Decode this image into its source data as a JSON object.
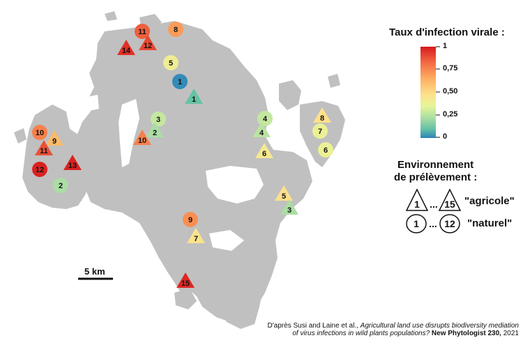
{
  "legend": {
    "title": "Taux d'infection virale :",
    "ticks": [
      "1",
      "0,75",
      "0,50",
      "0,25",
      "0"
    ],
    "colors": [
      "#d7191c",
      "#f46d43",
      "#fdae61",
      "#fee08b",
      "#e6f598",
      "#abdda4",
      "#66c2a5",
      "#2b83ba"
    ]
  },
  "environment": {
    "title_line1": "Environnement",
    "title_line2": "de prélèvement :",
    "agri_first": "1",
    "agri_last": "15",
    "ellipsis": "...",
    "agri_label": "\"agricole\"",
    "nat_first": "1",
    "nat_last": "12",
    "nat_label": "\"naturel\""
  },
  "scale_bar": {
    "label": "5 km"
  },
  "credit": {
    "prefix": "D'après Susi and Laine et al., ",
    "title_line1": "Agricultural land use disrupts biodiversity mediation",
    "title_line2": "of virus infections in wild plants populations?",
    "journal": "New Phytologist",
    "volume": "230,",
    "year": "2021"
  },
  "sites": [
    {
      "id": "nat-11",
      "shape": "circle",
      "label": "11",
      "rate": 0.85
    },
    {
      "id": "nat-8",
      "shape": "circle",
      "label": "8",
      "rate": 0.72
    },
    {
      "id": "agri-14",
      "shape": "triangle",
      "label": "14",
      "rate": 0.95
    },
    {
      "id": "agri-12",
      "shape": "triangle",
      "label": "12",
      "rate": 0.9
    },
    {
      "id": "nat-5",
      "shape": "circle",
      "label": "5",
      "rate": 0.47
    },
    {
      "id": "nat-1",
      "shape": "circle",
      "label": "1",
      "rate": 0.02
    },
    {
      "id": "agri-1",
      "shape": "triangle",
      "label": "1",
      "rate": 0.15
    },
    {
      "id": "nat-3",
      "shape": "circle",
      "label": "3",
      "rate": 0.35
    },
    {
      "id": "agri-2",
      "shape": "triangle",
      "label": "2",
      "rate": 0.3
    },
    {
      "id": "agri-10",
      "shape": "triangle",
      "label": "10",
      "rate": 0.78
    },
    {
      "id": "nat-10",
      "shape": "circle",
      "label": "10",
      "rate": 0.78
    },
    {
      "id": "agri-9",
      "shape": "triangle",
      "label": "9",
      "rate": 0.65
    },
    {
      "id": "agri-11",
      "shape": "triangle",
      "label": "11",
      "rate": 0.88
    },
    {
      "id": "nat-12",
      "shape": "circle",
      "label": "12",
      "rate": 0.98
    },
    {
      "id": "agri-13",
      "shape": "triangle",
      "label": "13",
      "rate": 0.98
    },
    {
      "id": "nat-2",
      "shape": "circle",
      "label": "2",
      "rate": 0.3
    },
    {
      "id": "nat-4",
      "shape": "circle",
      "label": "4",
      "rate": 0.35
    },
    {
      "id": "agri-4",
      "shape": "triangle",
      "label": "4",
      "rate": 0.33
    },
    {
      "id": "agri-6",
      "shape": "triangle",
      "label": "6",
      "rate": 0.5
    },
    {
      "id": "agri-8",
      "shape": "triangle",
      "label": "8",
      "rate": 0.55
    },
    {
      "id": "nat-7",
      "shape": "circle",
      "label": "7",
      "rate": 0.45
    },
    {
      "id": "nat-6",
      "shape": "circle",
      "label": "6",
      "rate": 0.45
    },
    {
      "id": "agri-5",
      "shape": "triangle",
      "label": "5",
      "rate": 0.55
    },
    {
      "id": "agri-3",
      "shape": "triangle",
      "label": "3",
      "rate": 0.3
    },
    {
      "id": "nat-9",
      "shape": "circle",
      "label": "9",
      "rate": 0.75
    },
    {
      "id": "agri-7",
      "shape": "triangle",
      "label": "7",
      "rate": 0.53
    },
    {
      "id": "agri-15",
      "shape": "triangle",
      "label": "15",
      "rate": 0.97
    }
  ]
}
